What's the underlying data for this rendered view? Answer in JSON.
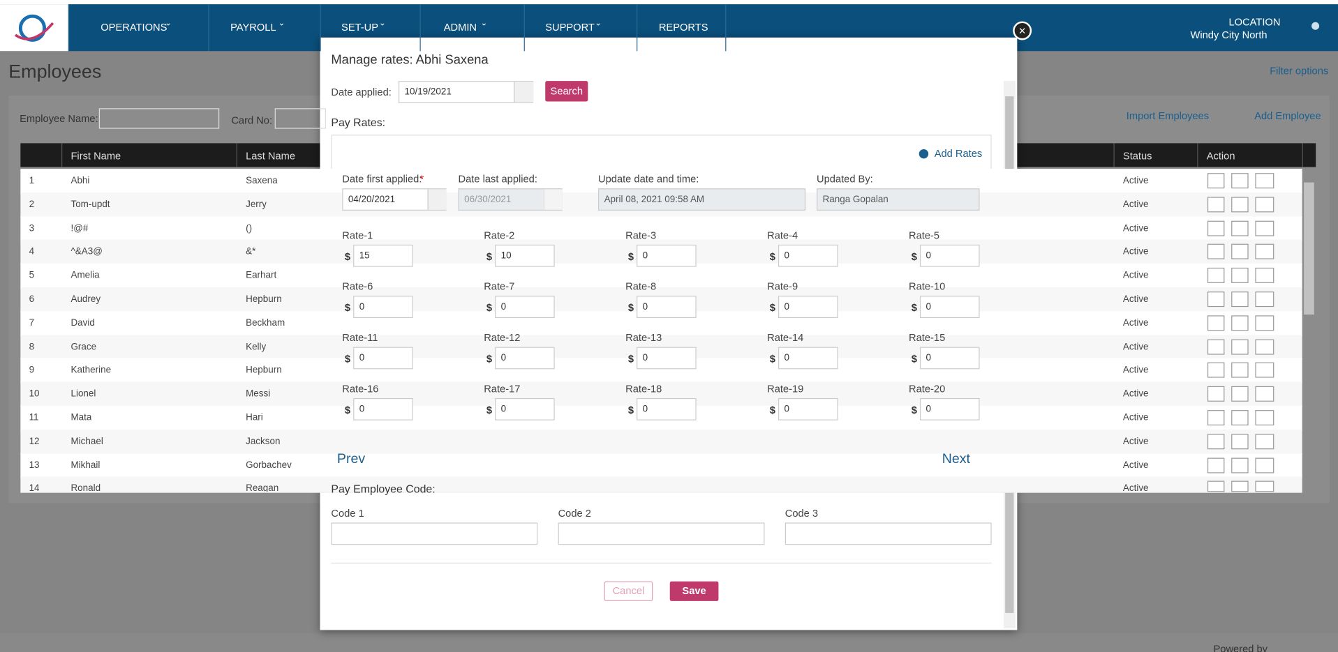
{
  "nav": {
    "items": [
      "OPERATIONS",
      "PAYROLL",
      "SET-UP",
      "ADMIN",
      "SUPPORT",
      "REPORTS"
    ],
    "location_label": "LOCATION",
    "location": "Windy City North"
  },
  "page": {
    "title": "Employees",
    "filter_options": "Filter options",
    "employee_name_label": "Employee Name:",
    "card_no_label": "Card No:",
    "import_employees": "Import Employees",
    "add_employee": "Add Employee",
    "powered_by": "Powered by"
  },
  "table": {
    "headers": [
      "First Name",
      "Last Name",
      "Status",
      "Action"
    ],
    "rows": [
      [
        "1",
        "Abhi",
        "Saxena",
        "Active"
      ],
      [
        "2",
        "Tom-updt",
        "Jerry",
        "Active"
      ],
      [
        "3",
        "!@#",
        "()",
        "Active"
      ],
      [
        "4",
        "^&A3@",
        "&*",
        "Active"
      ],
      [
        "5",
        "Amelia",
        "Earhart",
        "Active"
      ],
      [
        "6",
        "Audrey",
        "Hepburn",
        "Active"
      ],
      [
        "7",
        "David",
        "Beckham",
        "Active"
      ],
      [
        "8",
        "Grace",
        "Kelly",
        "Active"
      ],
      [
        "9",
        "Katherine",
        "Hepburn",
        "Active"
      ],
      [
        "10",
        "Lionel",
        "Messi",
        "Active"
      ],
      [
        "11",
        "Mata",
        "Hari",
        "Active"
      ],
      [
        "12",
        "Michael",
        "Jackson",
        "Active"
      ],
      [
        "13",
        "Mikhail",
        "Gorbachev",
        "Active"
      ],
      [
        "14",
        "Ronald",
        "Reagan",
        "Active"
      ]
    ]
  },
  "modal": {
    "title": "Manage rates: Abhi Saxena",
    "date_applied_label": "Date applied:",
    "date_applied": "10/19/2021",
    "search": "Search",
    "pay_rates": "Pay Rates:",
    "add_rates": "Add Rates",
    "date_first_applied_label": "Date first applied:",
    "required_mark": "*",
    "date_first_applied": "04/20/2021",
    "date_last_applied_label": "Date last applied:",
    "date_last_applied": "06/30/2021",
    "update_label": "Update date and time:",
    "update_value": "April 08, 2021 09:58 AM",
    "updated_by_label": "Updated By:",
    "updated_by": "Ranga Gopalan",
    "currency": "$",
    "rates": [
      {
        "label": "Rate-1",
        "value": "15"
      },
      {
        "label": "Rate-2",
        "value": "10"
      },
      {
        "label": "Rate-3",
        "value": "0"
      },
      {
        "label": "Rate-4",
        "value": "0"
      },
      {
        "label": "Rate-5",
        "value": "0"
      },
      {
        "label": "Rate-6",
        "value": "0"
      },
      {
        "label": "Rate-7",
        "value": "0"
      },
      {
        "label": "Rate-8",
        "value": "0"
      },
      {
        "label": "Rate-9",
        "value": "0"
      },
      {
        "label": "Rate-10",
        "value": "0"
      },
      {
        "label": "Rate-11",
        "value": "0"
      },
      {
        "label": "Rate-12",
        "value": "0"
      },
      {
        "label": "Rate-13",
        "value": "0"
      },
      {
        "label": "Rate-14",
        "value": "0"
      },
      {
        "label": "Rate-15",
        "value": "0"
      },
      {
        "label": "Rate-16",
        "value": "0"
      },
      {
        "label": "Rate-17",
        "value": "0"
      },
      {
        "label": "Rate-18",
        "value": "0"
      },
      {
        "label": "Rate-19",
        "value": "0"
      },
      {
        "label": "Rate-20",
        "value": "0"
      }
    ],
    "prev": "Prev",
    "next": "Next",
    "pay_employee_code": "Pay Employee Code:",
    "codes": [
      "Code 1",
      "Code 2",
      "Code 3"
    ],
    "cancel": "Cancel",
    "save": "Save"
  }
}
